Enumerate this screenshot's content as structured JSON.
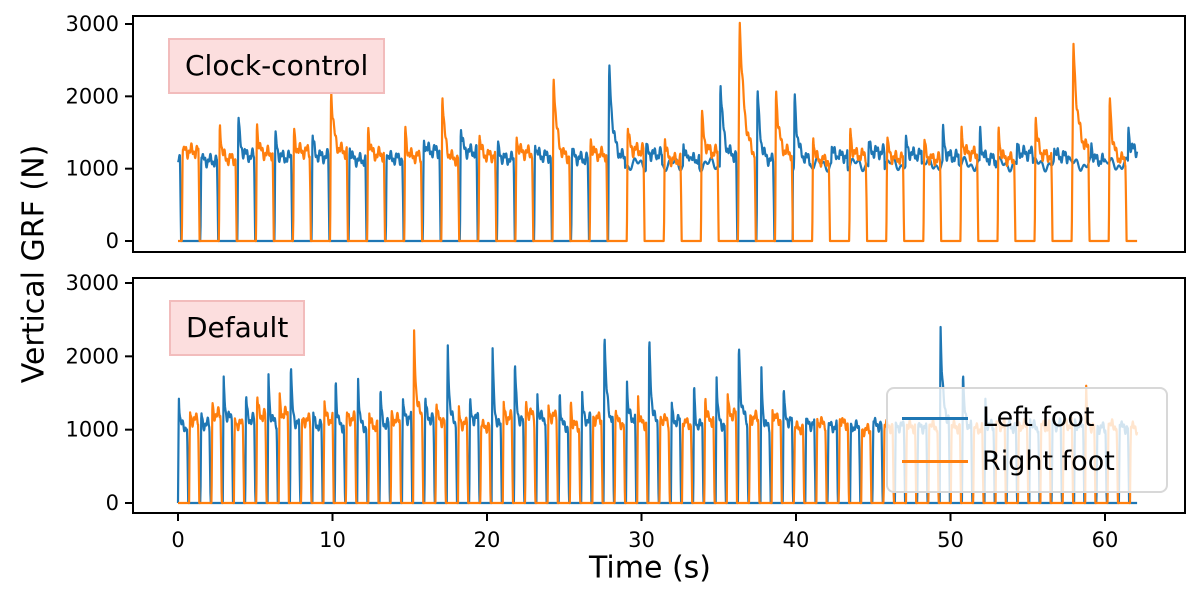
{
  "chart_data": {
    "type": "line",
    "xlabel": "Time (s)",
    "ylabel": "Vertical GRF (N)",
    "xticks": [
      0,
      10,
      20,
      30,
      40,
      50,
      60
    ],
    "yticks": [
      0,
      1000,
      2000,
      3000
    ],
    "xlim": [
      -2.9,
      65.1
    ],
    "ylim": [
      -150,
      3110
    ],
    "x_data_range_s": [
      0,
      62
    ],
    "grid": false,
    "legend": {
      "position": "lower right",
      "entries": [
        {
          "label": "Left foot",
          "color": "#1f77b4"
        },
        {
          "label": "Right foot",
          "color": "#ff7f0e"
        }
      ]
    },
    "panels": [
      {
        "label": "Clock-control",
        "label_box_color": "#fcdede",
        "gait": {
          "stride_s": 2.4,
          "stance_s": 1.15,
          "dt_s": 0.02
        },
        "series": [
          {
            "name": "Left foot",
            "color": "#1f77b4",
            "phase_s": -0.95,
            "plateau_N": 1170,
            "plateau_jitter_N": 80,
            "impact_factor": 1.12,
            "elevated_floor": {
              "level_N": 1060,
              "ranges_s": [
                [
                  28.2,
                  35.2
                ],
                [
                  39.8,
                  62.2
                ]
              ]
            },
            "spikes": [
              {
                "t": 4.2,
                "v": 1760
              },
              {
                "t": 7.3,
                "v": 1560
              },
              {
                "t": 27.4,
                "v": 2500
              },
              {
                "t": 35.2,
                "v": 2230
              },
              {
                "t": 36.4,
                "v": 2150
              },
              {
                "t": 39.9,
                "v": 2100
              },
              {
                "t": 48.4,
                "v": 1660
              },
              {
                "t": 50.8,
                "v": 1640
              },
              {
                "t": 61.9,
                "v": 1620
              }
            ]
          },
          {
            "name": "Right foot",
            "color": "#ff7f0e",
            "phase_s": 0.25,
            "plateau_N": 1185,
            "plateau_jitter_N": 85,
            "impact_factor": 1.32,
            "spikes": [
              {
                "t": 0.5,
                "v": 1260
              },
              {
                "t": 2.5,
                "v": 1680
              },
              {
                "t": 10.4,
                "v": 2120
              },
              {
                "t": 12.6,
                "v": 1620
              },
              {
                "t": 16.0,
                "v": 2060
              },
              {
                "t": 23.9,
                "v": 2320
              },
              {
                "t": 33.6,
                "v": 1850
              },
              {
                "t": 37.4,
                "v": 3080
              },
              {
                "t": 39.4,
                "v": 2140
              },
              {
                "t": 44.6,
                "v": 1610
              },
              {
                "t": 53.2,
                "v": 1640
              },
              {
                "t": 59.0,
                "v": 2780
              },
              {
                "t": 61.0,
                "v": 2050
              }
            ]
          }
        ]
      },
      {
        "label": "Default",
        "label_box_color": "#fcdede",
        "gait": {
          "stride_s": 1.45,
          "stance_s": 0.66,
          "dt_s": 0.02
        },
        "series": [
          {
            "name": "Left foot",
            "color": "#1f77b4",
            "phase_s": 0.0,
            "plateau_N": 1100,
            "plateau_jitter_N": 70,
            "impact_factor": 1.3,
            "calm": {
              "ranges_s": [
                [
                  40.2,
                  48.9
                ],
                [
                  52.3,
                  62.2
                ]
              ],
              "impact_factor": 1.06,
              "plateau_cap_N": 1080
            },
            "spikes": [
              {
                "t": 3.5,
                "v": 1760
              },
              {
                "t": 5.8,
                "v": 1800
              },
              {
                "t": 8.0,
                "v": 1950
              },
              {
                "t": 9.7,
                "v": 1760
              },
              {
                "t": 11.5,
                "v": 1740
              },
              {
                "t": 13.3,
                "v": 1640
              },
              {
                "t": 15.6,
                "v": 1500
              },
              {
                "t": 18.2,
                "v": 2200
              },
              {
                "t": 20.3,
                "v": 2160
              },
              {
                "t": 21.4,
                "v": 1990
              },
              {
                "t": 24.6,
                "v": 1600
              },
              {
                "t": 27.6,
                "v": 2370
              },
              {
                "t": 29.1,
                "v": 1700
              },
              {
                "t": 30.9,
                "v": 2330
              },
              {
                "t": 33.3,
                "v": 1700
              },
              {
                "t": 35.2,
                "v": 1760
              },
              {
                "t": 37.0,
                "v": 2230
              },
              {
                "t": 37.9,
                "v": 1900
              },
              {
                "t": 49.6,
                "v": 2450
              },
              {
                "t": 51.2,
                "v": 1850
              }
            ]
          },
          {
            "name": "Right foot",
            "color": "#ff7f0e",
            "phase_s": 0.72,
            "plateau_N": 1130,
            "plateau_jitter_N": 85,
            "impact_factor": 1.1,
            "calm": {
              "ranges_s": [
                [
                  39.5,
                  62.2
                ]
              ],
              "impact_factor": 1.03,
              "plateau_cap_N": 1060
            },
            "spikes": [
              {
                "t": 15.3,
                "v": 2400
              },
              {
                "t": 26.2,
                "v": 1460
              },
              {
                "t": 30.3,
                "v": 1490
              },
              {
                "t": 34.5,
                "v": 1500
              },
              {
                "t": 58.9,
                "v": 1650
              }
            ]
          }
        ]
      }
    ]
  }
}
